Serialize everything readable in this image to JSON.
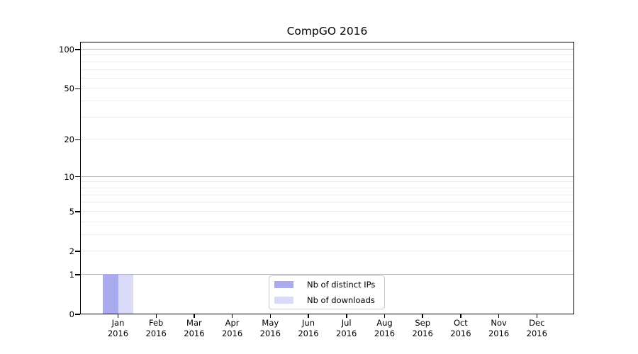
{
  "title": "CompGO 2016",
  "chart_data": {
    "type": "bar",
    "title": "CompGO 2016",
    "categories": [
      "Jan",
      "Feb",
      "Mar",
      "Apr",
      "May",
      "Jun",
      "Jul",
      "Aug",
      "Sep",
      "Oct",
      "Nov",
      "Dec"
    ],
    "x_year": "2016",
    "series": [
      {
        "name": "Nb of distinct IPs",
        "color": "#aaabee",
        "values": [
          1,
          0,
          0,
          0,
          0,
          0,
          0,
          0,
          0,
          0,
          0,
          0
        ]
      },
      {
        "name": "Nb of downloads",
        "color": "#dadbf8",
        "values": [
          1,
          0,
          0,
          0,
          0,
          0,
          0,
          0,
          0,
          0,
          0,
          0
        ]
      }
    ],
    "y_axis": {
      "scale": "log10(1+y)",
      "tick_values": [
        0,
        1,
        2,
        5,
        10,
        20,
        50,
        100
      ],
      "tick_labels": [
        "0",
        "1",
        "2",
        "5",
        "10",
        "20",
        "50",
        "100"
      ],
      "major_grid_values": [
        1,
        10,
        100
      ],
      "minor_grid_values": [
        2,
        3,
        4,
        5,
        6,
        7,
        8,
        9,
        20,
        30,
        40,
        50,
        60,
        70,
        80,
        90
      ],
      "ylim": [
        0,
        115
      ]
    },
    "grid": "horizontal",
    "legend_position": "lower center"
  },
  "colors": {
    "bar_distinct_ips": "#aaabee",
    "bar_downloads": "#dadbf8",
    "grid_major": "#b5b5b5",
    "grid_minor": "#ebebeb",
    "axis": "#000000",
    "background": "#ffffff"
  }
}
